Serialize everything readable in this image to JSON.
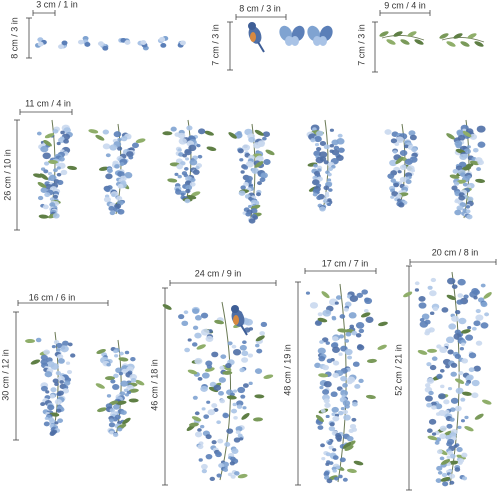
{
  "decals": [
    {
      "width": "3 cm / 1 in",
      "height": "8 cm / 3 in"
    },
    {
      "width": "8 cm / 3 in",
      "height": "7 cm / 3 in"
    },
    {
      "width": "9 cm / 4 in",
      "height": "7 cm / 3 in"
    },
    {
      "width": "11 cm / 4 in",
      "height": "26 cm / 10 in"
    },
    {
      "width": "16 cm / 6 in",
      "height": "30 cm / 12 in"
    },
    {
      "width": "24 cm / 9 in",
      "height": "46 cm / 18 in"
    },
    {
      "width": "17 cm / 7 in",
      "height": "48 cm / 19 in"
    },
    {
      "width": "20 cm / 8 in",
      "height": "52 cm / 21 in"
    }
  ]
}
